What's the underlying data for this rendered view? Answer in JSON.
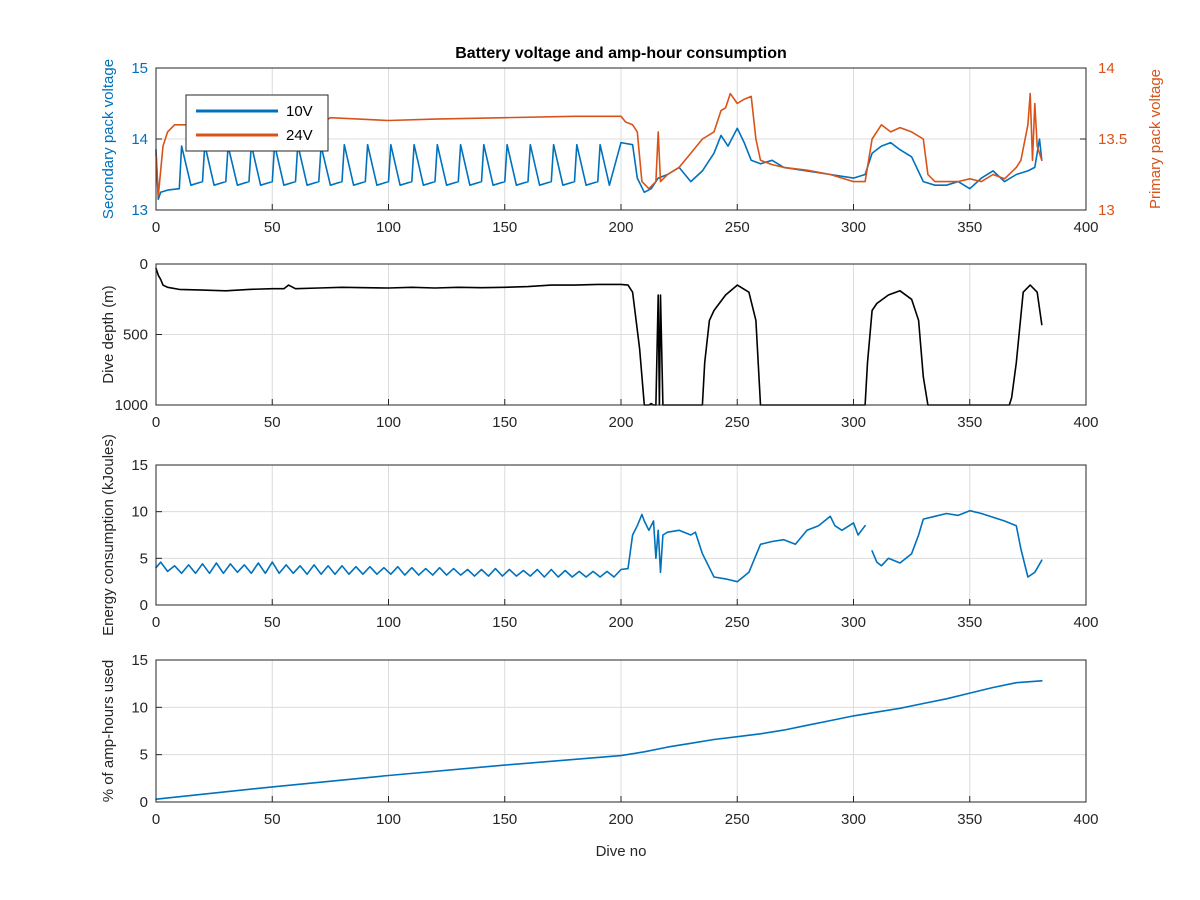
{
  "chart_data": [
    {
      "type": "line",
      "title": "Battery voltage and amp-hour consumption",
      "xlabel": "",
      "ylabel_left": "Secondary pack voltage",
      "ylabel_right": "Primary pack voltage",
      "xlim": [
        0,
        400
      ],
      "ylim_left": [
        13,
        15
      ],
      "ylim_right": [
        13,
        14
      ],
      "x_ticks": [
        "0",
        "50",
        "100",
        "150",
        "200",
        "250",
        "300",
        "350",
        "400"
      ],
      "y_ticks_left": [
        "13",
        "14",
        "15"
      ],
      "y_ticks_right": [
        "13",
        "13.5",
        "14"
      ],
      "grid": true,
      "legend_position": "top-left",
      "series": [
        {
          "name": "10V",
          "axis": "left",
          "color": "#0072BD",
          "x": [
            0,
            1,
            2,
            5,
            10,
            11,
            15,
            20,
            21,
            25,
            30,
            31,
            35,
            40,
            41,
            45,
            50,
            51,
            55,
            60,
            61,
            65,
            70,
            71,
            75,
            80,
            81,
            85,
            90,
            91,
            95,
            100,
            101,
            105,
            110,
            111,
            115,
            120,
            121,
            125,
            130,
            131,
            135,
            140,
            141,
            145,
            150,
            151,
            155,
            160,
            161,
            165,
            170,
            171,
            175,
            180,
            181,
            185,
            190,
            191,
            195,
            200,
            205,
            207,
            210,
            213,
            216,
            220,
            225,
            230,
            235,
            240,
            243,
            246,
            250,
            253,
            256,
            260,
            265,
            270,
            280,
            290,
            300,
            305,
            308,
            312,
            316,
            320,
            325,
            330,
            335,
            340,
            345,
            350,
            355,
            360,
            365,
            370,
            375,
            378,
            380,
            381
          ],
          "values": [
            13.85,
            13.15,
            13.25,
            13.28,
            13.3,
            13.9,
            13.35,
            13.4,
            13.92,
            13.35,
            13.4,
            13.9,
            13.35,
            13.4,
            13.92,
            13.35,
            13.4,
            13.92,
            13.35,
            13.4,
            13.92,
            13.35,
            13.4,
            13.9,
            13.35,
            13.4,
            13.92,
            13.35,
            13.4,
            13.92,
            13.35,
            13.4,
            13.92,
            13.35,
            13.4,
            13.92,
            13.35,
            13.4,
            13.92,
            13.35,
            13.4,
            13.92,
            13.35,
            13.4,
            13.92,
            13.35,
            13.4,
            13.92,
            13.35,
            13.4,
            13.92,
            13.35,
            13.4,
            13.92,
            13.35,
            13.4,
            13.92,
            13.35,
            13.4,
            13.92,
            13.35,
            13.95,
            13.92,
            13.45,
            13.25,
            13.3,
            13.45,
            13.5,
            13.6,
            13.4,
            13.55,
            13.8,
            14.05,
            13.9,
            14.15,
            13.95,
            13.7,
            13.65,
            13.7,
            13.6,
            13.55,
            13.5,
            13.45,
            13.5,
            13.8,
            13.9,
            13.95,
            13.85,
            13.75,
            13.4,
            13.35,
            13.35,
            13.4,
            13.3,
            13.45,
            13.55,
            13.4,
            13.5,
            13.55,
            13.6,
            14.0,
            13.7
          ]
        },
        {
          "name": "24V",
          "axis": "right",
          "color": "#D95319",
          "x": [
            0,
            1,
            3,
            5,
            8,
            12,
            30,
            50,
            70,
            75,
            100,
            120,
            150,
            180,
            200,
            202,
            205,
            207,
            209,
            212,
            215,
            216,
            217,
            220,
            225,
            230,
            235,
            240,
            243,
            245,
            247,
            250,
            253,
            256,
            258,
            260,
            265,
            270,
            280,
            290,
            300,
            305,
            308,
            312,
            316,
            320,
            325,
            330,
            332,
            335,
            340,
            345,
            350,
            355,
            360,
            365,
            370,
            372,
            375,
            376,
            377,
            378,
            379,
            380,
            381
          ],
          "values": [
            13.4,
            13.1,
            13.45,
            13.55,
            13.6,
            13.6,
            13.6,
            13.61,
            13.6,
            13.65,
            13.63,
            13.64,
            13.65,
            13.66,
            13.66,
            13.62,
            13.6,
            13.55,
            13.2,
            13.15,
            13.2,
            13.55,
            13.2,
            13.25,
            13.3,
            13.4,
            13.5,
            13.55,
            13.7,
            13.72,
            13.82,
            13.75,
            13.78,
            13.8,
            13.5,
            13.35,
            13.32,
            13.3,
            13.28,
            13.25,
            13.2,
            13.2,
            13.5,
            13.6,
            13.55,
            13.58,
            13.55,
            13.5,
            13.25,
            13.2,
            13.2,
            13.2,
            13.22,
            13.2,
            13.25,
            13.22,
            13.3,
            13.35,
            13.6,
            13.82,
            13.35,
            13.75,
            13.45,
            13.4,
            13.35
          ]
        }
      ]
    },
    {
      "type": "line",
      "title": "",
      "xlabel": "",
      "ylabel": "Dive depth (m)",
      "xlim": [
        0,
        400
      ],
      "ylim": [
        1000,
        0
      ],
      "y_reversed": true,
      "x_ticks": [
        "0",
        "50",
        "100",
        "150",
        "200",
        "250",
        "300",
        "350",
        "400"
      ],
      "y_ticks": [
        "0",
        "500",
        "1000"
      ],
      "grid": true,
      "series": [
        {
          "color": "#000000",
          "x": [
            0,
            1,
            2,
            3,
            5,
            10,
            20,
            30,
            40,
            50,
            55,
            57,
            60,
            70,
            80,
            90,
            100,
            110,
            120,
            130,
            140,
            150,
            160,
            170,
            180,
            190,
            200,
            203,
            205,
            208,
            210,
            212,
            213,
            214,
            215,
            216,
            216.5,
            217,
            218,
            219,
            220,
            225,
            230,
            235,
            236,
            238,
            240,
            245,
            250,
            255,
            258,
            260,
            262,
            270,
            280,
            290,
            300,
            305,
            306,
            308,
            310,
            315,
            320,
            325,
            328,
            330,
            332,
            340,
            350,
            360,
            367,
            368,
            370,
            373,
            376,
            379,
            381
          ],
          "values": [
            30,
            80,
            110,
            150,
            165,
            180,
            185,
            190,
            180,
            175,
            175,
            150,
            175,
            170,
            165,
            168,
            170,
            165,
            170,
            165,
            168,
            165,
            160,
            150,
            150,
            145,
            145,
            150,
            200,
            600,
            1000,
            1000,
            990,
            1000,
            1000,
            220,
            1000,
            220,
            1000,
            1000,
            1000,
            1000,
            1000,
            1000,
            700,
            400,
            330,
            220,
            150,
            200,
            400,
            1000,
            1000,
            1000,
            1000,
            1000,
            1000,
            1000,
            700,
            330,
            280,
            220,
            190,
            250,
            400,
            800,
            1000,
            1000,
            1000,
            1000,
            1000,
            950,
            700,
            200,
            150,
            200,
            430
          ]
        }
      ]
    },
    {
      "type": "line",
      "title": "",
      "xlabel": "",
      "ylabel": "Energy consumption (kJoules)",
      "xlim": [
        0,
        400
      ],
      "ylim": [
        0,
        15
      ],
      "x_ticks": [
        "0",
        "50",
        "100",
        "150",
        "200",
        "250",
        "300",
        "350",
        "400"
      ],
      "y_ticks": [
        "0",
        "5",
        "10",
        "15"
      ],
      "grid": true,
      "series": [
        {
          "color": "#0072BD",
          "segments": [
            {
              "x": [
                0,
                2,
                5,
                8,
                11,
                14,
                17,
                20,
                23,
                26,
                29,
                32,
                35,
                38,
                41,
                44,
                47,
                50,
                53,
                56,
                59,
                62,
                65,
                68,
                71,
                74,
                77,
                80,
                83,
                86,
                89,
                92,
                95,
                98,
                101,
                104,
                107,
                110,
                113,
                116,
                119,
                122,
                125,
                128,
                131,
                134,
                137,
                140,
                143,
                146,
                149,
                152,
                155,
                158,
                161,
                164,
                167,
                170,
                173,
                176,
                179,
                182,
                185,
                188,
                191,
                194,
                197,
                200,
                203,
                205,
                207,
                209,
                210,
                212,
                214,
                215,
                216,
                217,
                218,
                220,
                225,
                230,
                232,
                235,
                240,
                245,
                250,
                255,
                260,
                265,
                270,
                275,
                280,
                285,
                290,
                292,
                295,
                300,
                302,
                305
              ],
              "values": [
                4.0,
                4.6,
                3.6,
                4.2,
                3.4,
                4.3,
                3.4,
                4.4,
                3.4,
                4.5,
                3.4,
                4.4,
                3.5,
                4.3,
                3.4,
                4.5,
                3.4,
                4.6,
                3.4,
                4.3,
                3.4,
                4.2,
                3.3,
                4.3,
                3.3,
                4.2,
                3.3,
                4.2,
                3.3,
                4.1,
                3.3,
                4.1,
                3.3,
                4.0,
                3.3,
                4.1,
                3.2,
                4.0,
                3.2,
                3.9,
                3.2,
                4.0,
                3.2,
                3.9,
                3.2,
                3.8,
                3.1,
                3.8,
                3.1,
                3.9,
                3.1,
                3.8,
                3.1,
                3.7,
                3.1,
                3.8,
                3.0,
                3.8,
                3.0,
                3.7,
                3.0,
                3.6,
                3.0,
                3.6,
                3.0,
                3.6,
                3.0,
                3.8,
                3.9,
                7.5,
                8.5,
                9.7,
                9.0,
                8.0,
                9.0,
                5.0,
                8.0,
                3.5,
                7.5,
                7.8,
                8.0,
                7.5,
                7.8,
                5.5,
                3.0,
                2.8,
                2.5,
                3.5,
                6.5,
                6.8,
                7.0,
                6.5,
                8.0,
                8.5,
                9.5,
                8.5,
                8.0,
                8.8,
                7.5,
                8.5
              ]
            },
            {
              "x": [
                308,
                310,
                312,
                315,
                320,
                325,
                328,
                330,
                335,
                340,
                345,
                350,
                355,
                360,
                365,
                370,
                372,
                375,
                378,
                381
              ],
              "values": [
                5.8,
                4.6,
                4.2,
                5.0,
                4.5,
                5.5,
                7.5,
                9.2,
                9.5,
                9.8,
                9.6,
                10.1,
                9.8,
                9.4,
                9.0,
                8.5,
                6.0,
                3.0,
                3.5,
                4.8
              ]
            }
          ]
        }
      ]
    },
    {
      "type": "line",
      "title": "",
      "xlabel": "Dive no",
      "ylabel": "% of amp-hours used",
      "xlim": [
        0,
        400
      ],
      "ylim": [
        0,
        15
      ],
      "x_ticks": [
        "0",
        "50",
        "100",
        "150",
        "200",
        "250",
        "300",
        "350",
        "400"
      ],
      "y_ticks": [
        "0",
        "5",
        "10",
        "15"
      ],
      "grid": true,
      "series": [
        {
          "color": "#0072BD",
          "x": [
            0,
            50,
            100,
            150,
            200,
            210,
            220,
            230,
            240,
            250,
            260,
            270,
            280,
            290,
            300,
            310,
            320,
            330,
            340,
            350,
            360,
            370,
            381
          ],
          "values": [
            0.3,
            1.6,
            2.8,
            3.9,
            4.9,
            5.3,
            5.8,
            6.2,
            6.6,
            6.9,
            7.2,
            7.6,
            8.1,
            8.6,
            9.1,
            9.5,
            9.9,
            10.4,
            10.9,
            11.5,
            12.1,
            12.6,
            12.8
          ]
        }
      ]
    }
  ]
}
